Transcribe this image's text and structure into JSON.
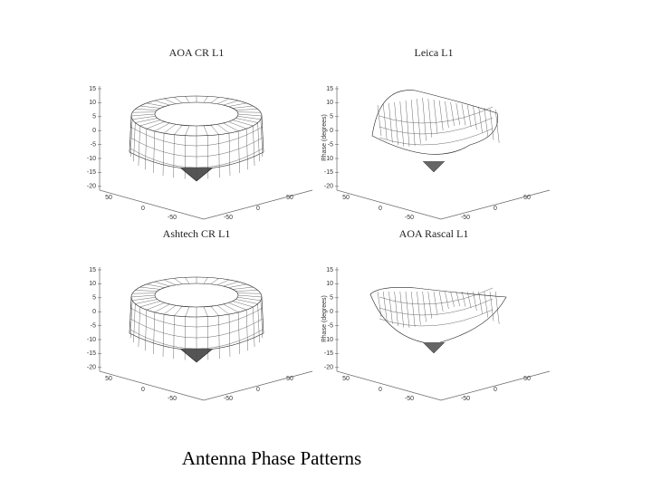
{
  "caption": "Antenna Phase Patterns",
  "panels": [
    {
      "title": "AOA CR L1",
      "z_ticks": [
        "15",
        "10",
        "5",
        "0",
        "-5",
        "-10",
        "-15",
        "-20"
      ],
      "x_ticks": [
        "50",
        "0",
        "-50"
      ],
      "y_ticks": [
        "-50",
        "0",
        "50"
      ]
    },
    {
      "title": "Leica L1",
      "axis_label": "Phase (degrees)",
      "z_ticks": [
        "15",
        "10",
        "5",
        "0",
        "-5",
        "-10",
        "-15",
        "-20"
      ],
      "x_ticks": [
        "50",
        "0",
        "-50"
      ],
      "y_ticks": [
        "-50",
        "0",
        "50"
      ]
    },
    {
      "title": "Ashtech CR L1",
      "z_ticks": [
        "15",
        "10",
        "5",
        "0",
        "-5",
        "-10",
        "-15",
        "-20"
      ],
      "x_ticks": [
        "50",
        "0",
        "-50"
      ],
      "y_ticks": [
        "-50",
        "0",
        "50"
      ]
    },
    {
      "title": "AOA Rascal L1",
      "axis_label": "Phase (degrees)",
      "z_ticks": [
        "15",
        "10",
        "5",
        "0",
        "-5",
        "-10",
        "-15",
        "-20"
      ],
      "x_ticks": [
        "50",
        "0",
        "-50"
      ],
      "y_ticks": [
        "-50",
        "0",
        "50"
      ]
    }
  ]
}
